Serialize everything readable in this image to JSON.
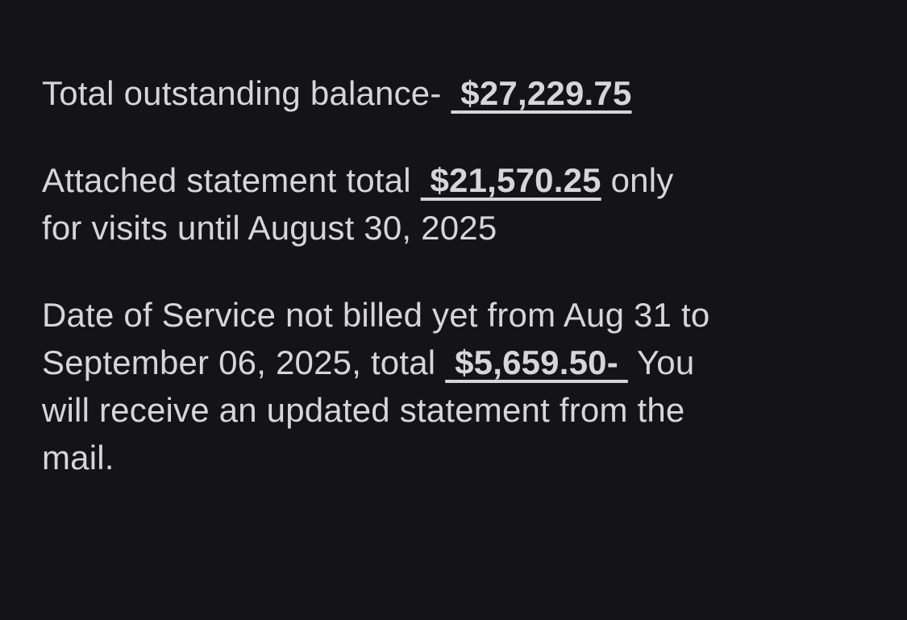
{
  "page": {
    "background_color": "#141417",
    "text_color": "#d6d6d8"
  },
  "amounts": {
    "total_outstanding": "$27,229.75",
    "attached_statement_total": "$21,570.25",
    "not_billed_total": "$5,659.50-"
  },
  "paragraphs": {
    "p1": {
      "lead": "Total outstanding balance- ",
      "underlined_space": " ",
      "amount": "$27,229.75"
    },
    "p2": {
      "lead": "Attached statement total ",
      "underlined_space": " ",
      "amount": "$21,570.25",
      "tail": " only\nfor visits until August 30, 2025"
    },
    "p3": {
      "lead": "Date of Service not billed yet from Aug 31 to\nSeptember 06, 2025, total ",
      "underlined_space_before": " ",
      "amount": "$5,659.50-",
      "underlined_space_after": " ",
      "tail": " You\nwill receive an updated statement from the\nmail."
    }
  }
}
